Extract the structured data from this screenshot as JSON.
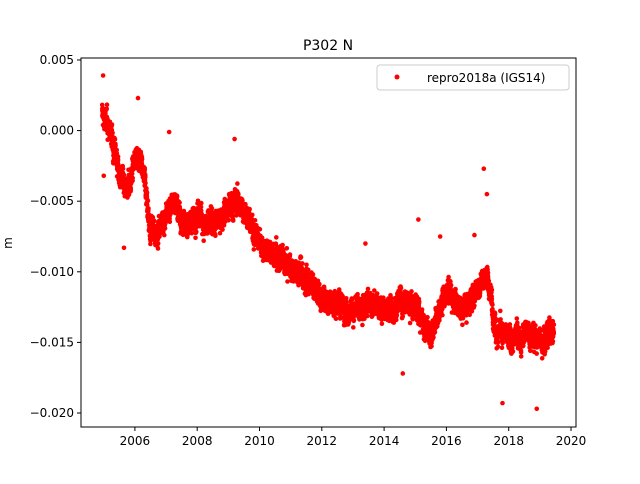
{
  "chart_data": {
    "type": "scatter",
    "title": "P302 N",
    "xlabel": "",
    "ylabel": "m",
    "xlim": [
      2004.27,
      2020.16
    ],
    "ylim": [
      -0.02099,
      0.00514
    ],
    "x_ticks": [
      2006,
      2008,
      2010,
      2012,
      2014,
      2016,
      2018,
      2020
    ],
    "x_tick_labels": [
      "2006",
      "2008",
      "2010",
      "2012",
      "2014",
      "2016",
      "2018",
      "2020"
    ],
    "y_ticks": [
      0.005,
      0.0,
      -0.005,
      -0.01,
      -0.015,
      -0.02
    ],
    "y_tick_labels": [
      "0.005",
      "0.000",
      "−0.005",
      "−0.010",
      "−0.015",
      "−0.020"
    ],
    "grid": false,
    "legend": {
      "placement": "top-right",
      "entries": [
        "repro2018a (IGS14)"
      ]
    },
    "series": [
      {
        "name": "repro2018a (IGS14)",
        "color": "#ff0000",
        "marker": "circle",
        "approximate_daily_trajectory": [
          [
            2004.95,
            0.0012
          ],
          [
            2005.2,
            0.0
          ],
          [
            2005.5,
            -0.003
          ],
          [
            2005.8,
            -0.0042
          ],
          [
            2006.0,
            -0.002
          ],
          [
            2006.3,
            -0.003
          ],
          [
            2006.5,
            -0.0072
          ],
          [
            2006.8,
            -0.007
          ],
          [
            2007.0,
            -0.006
          ],
          [
            2007.3,
            -0.005
          ],
          [
            2007.6,
            -0.0068
          ],
          [
            2008.0,
            -0.006
          ],
          [
            2008.5,
            -0.007
          ],
          [
            2009.0,
            -0.0052
          ],
          [
            2009.3,
            -0.005
          ],
          [
            2009.6,
            -0.006
          ],
          [
            2010.0,
            -0.008
          ],
          [
            2010.5,
            -0.009
          ],
          [
            2011.0,
            -0.0098
          ],
          [
            2011.5,
            -0.0102
          ],
          [
            2012.0,
            -0.0118
          ],
          [
            2012.5,
            -0.0122
          ],
          [
            2013.0,
            -0.0128
          ],
          [
            2013.5,
            -0.0122
          ],
          [
            2014.0,
            -0.0128
          ],
          [
            2014.5,
            -0.0122
          ],
          [
            2015.0,
            -0.0122
          ],
          [
            2015.5,
            -0.0148
          ],
          [
            2016.0,
            -0.011
          ],
          [
            2016.5,
            -0.0128
          ],
          [
            2017.0,
            -0.0112
          ],
          [
            2017.3,
            -0.0102
          ],
          [
            2017.6,
            -0.0138
          ],
          [
            2018.0,
            -0.015
          ],
          [
            2018.5,
            -0.0142
          ],
          [
            2019.0,
            -0.0148
          ],
          [
            2019.45,
            -0.014
          ]
        ],
        "scatter_spread_m": 0.0015,
        "outliers": [
          [
            2005.0,
            -0.0032
          ],
          [
            2004.98,
            0.0039
          ],
          [
            2005.65,
            -0.0083
          ],
          [
            2006.1,
            0.0023
          ],
          [
            2007.1,
            -0.0001
          ],
          [
            2009.2,
            -0.0006
          ],
          [
            2015.1,
            -0.0063
          ],
          [
            2017.2,
            -0.0027
          ],
          [
            2017.3,
            -0.0045
          ],
          [
            2017.8,
            -0.0193
          ],
          [
            2018.9,
            -0.0197
          ],
          [
            2014.6,
            -0.0172
          ],
          [
            2013.4,
            -0.008
          ],
          [
            2016.9,
            -0.0074
          ],
          [
            2015.8,
            -0.0075
          ]
        ]
      }
    ]
  }
}
